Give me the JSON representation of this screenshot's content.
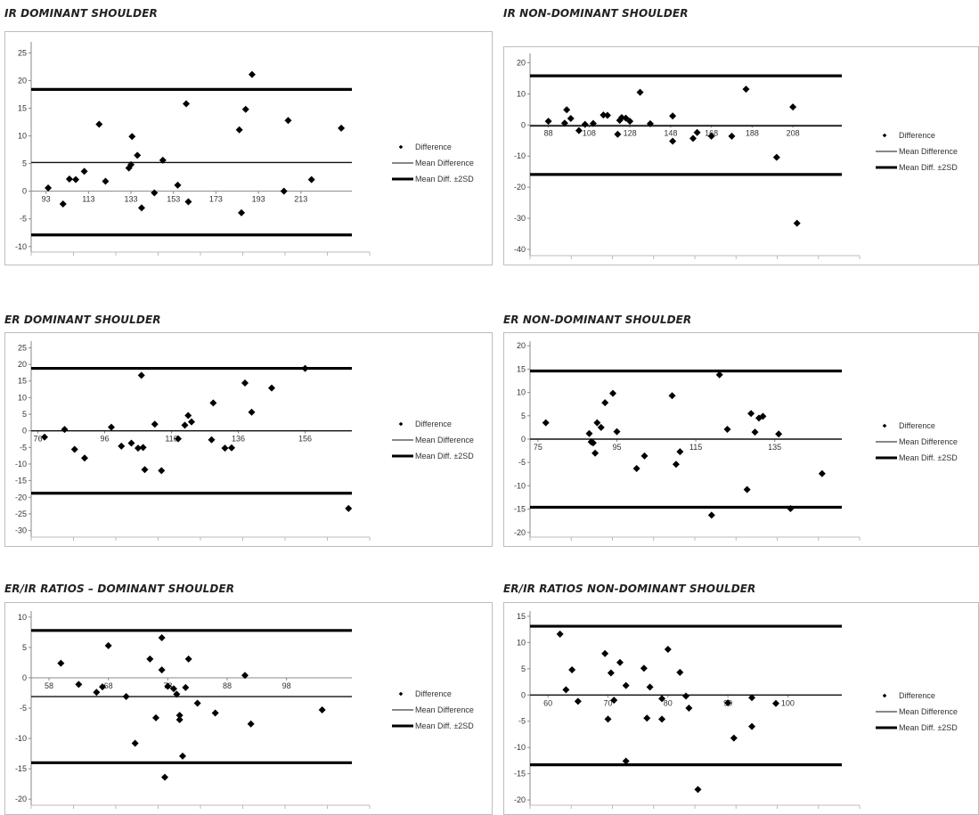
{
  "chart_data": [
    {
      "type": "scatter",
      "title": "IR  DOMINANT  SHOULDER",
      "xlabel": "",
      "ylabel": "",
      "x_ticks": [
        93,
        113,
        133,
        153,
        173,
        193,
        213
      ],
      "y_ticks": [
        -10,
        -5,
        0,
        5,
        10,
        15,
        20,
        25
      ],
      "xlim": [
        86,
        237
      ],
      "ylim": [
        -11,
        27
      ],
      "mean_difference": 5.2,
      "upper_limit": 18.4,
      "lower_limit": -7.9,
      "legend": [
        "Difference",
        "Mean Difference",
        "Mean Diff. ±2SD"
      ],
      "legend_position": "right",
      "points": [
        [
          94,
          0.6
        ],
        [
          101,
          -2.3
        ],
        [
          104,
          2.2
        ],
        [
          107,
          2.1
        ],
        [
          111,
          3.6
        ],
        [
          118,
          12.1
        ],
        [
          121,
          1.8
        ],
        [
          132,
          4.2
        ],
        [
          133,
          4.8
        ],
        [
          133.5,
          9.9
        ],
        [
          136,
          6.5
        ],
        [
          138,
          -3
        ],
        [
          144,
          -0.3
        ],
        [
          148,
          5.6
        ],
        [
          155,
          1.1
        ],
        [
          159,
          15.8
        ],
        [
          160,
          -1.9
        ],
        [
          184,
          11.1
        ],
        [
          185,
          -3.9
        ],
        [
          187,
          14.8
        ],
        [
          190,
          21.1
        ],
        [
          205,
          0
        ],
        [
          207,
          12.8
        ],
        [
          218,
          2.1
        ],
        [
          232,
          11.4
        ]
      ]
    },
    {
      "type": "scatter",
      "title": "IR NON-DOMINANT  SHOULDER",
      "xlabel": "",
      "ylabel": "",
      "x_ticks": [
        88,
        108,
        128,
        148,
        168,
        188,
        208
      ],
      "y_ticks": [
        -40,
        -30,
        -20,
        -10,
        0,
        10,
        20
      ],
      "xlim": [
        79,
        232
      ],
      "ylim": [
        -42,
        23
      ],
      "mean_difference": -0.3,
      "upper_limit": 15.8,
      "lower_limit": -15.9,
      "legend": [
        "Difference",
        "Mean Difference",
        "Mean Diff. ±2SD"
      ],
      "legend_position": "right",
      "points": [
        [
          88,
          1.2
        ],
        [
          96,
          0.6
        ],
        [
          97,
          4.9
        ],
        [
          99,
          2.1
        ],
        [
          103,
          -1.8
        ],
        [
          106,
          0.2
        ],
        [
          110,
          0.5
        ],
        [
          115,
          3.2
        ],
        [
          117,
          3.1
        ],
        [
          122,
          -3
        ],
        [
          123,
          1.5
        ],
        [
          124,
          2.4
        ],
        [
          126,
          2.2
        ],
        [
          128,
          1.2
        ],
        [
          133,
          10.5
        ],
        [
          138,
          0.4
        ],
        [
          149,
          -5.2
        ],
        [
          149,
          2.9
        ],
        [
          159,
          -4.3
        ],
        [
          161,
          -2.4
        ],
        [
          168,
          -3.6
        ],
        [
          178,
          -3.6
        ],
        [
          185,
          11.5
        ],
        [
          200,
          -10.4
        ],
        [
          208,
          5.8
        ],
        [
          210,
          -31.6
        ]
      ]
    },
    {
      "type": "scatter",
      "title": "ER  DOMINANT  SHOULDER",
      "xlabel": "",
      "ylabel": "",
      "x_ticks": [
        76,
        96,
        116,
        136,
        156
      ],
      "y_ticks": [
        -30,
        -25,
        -20,
        -15,
        -10,
        -5,
        0,
        5,
        10,
        15,
        20,
        25
      ],
      "xlim": [
        74,
        170
      ],
      "ylim": [
        -32,
        27
      ],
      "mean_difference": 0,
      "upper_limit": 18.8,
      "lower_limit": -18.8,
      "legend": [
        "Difference",
        "Mean Difference",
        "Mean Diff. ±2SD"
      ],
      "legend_position": "right",
      "points": [
        [
          78,
          -1.9
        ],
        [
          84,
          0.4
        ],
        [
          87,
          -5.6
        ],
        [
          90,
          -8.2
        ],
        [
          98,
          1.1
        ],
        [
          101,
          -4.6
        ],
        [
          104,
          -3.7
        ],
        [
          106,
          -5.2
        ],
        [
          107,
          16.7
        ],
        [
          107.5,
          -5
        ],
        [
          108,
          -11.7
        ],
        [
          111,
          2
        ],
        [
          113,
          -12
        ],
        [
          118,
          -2.4
        ],
        [
          120,
          1.7
        ],
        [
          121,
          4.6
        ],
        [
          122,
          2.7
        ],
        [
          128,
          -2.7
        ],
        [
          128.5,
          8.4
        ],
        [
          132,
          -5.2
        ],
        [
          134,
          -5.1
        ],
        [
          138,
          14.4
        ],
        [
          140,
          5.6
        ],
        [
          146,
          12.9
        ],
        [
          156,
          18.8
        ],
        [
          169,
          -23.4
        ]
      ]
    },
    {
      "type": "scatter",
      "title": "ER NON-DOMINANT  SHOULDER",
      "xlabel": "",
      "ylabel": "",
      "x_ticks": [
        75,
        95,
        115,
        135
      ],
      "y_ticks": [
        -20,
        -15,
        -10,
        -5,
        0,
        5,
        10,
        15,
        20
      ],
      "xlim": [
        73,
        152
      ],
      "ylim": [
        -21,
        21
      ],
      "mean_difference": 0,
      "upper_limit": 14.6,
      "lower_limit": -14.6,
      "legend": [
        "Difference",
        "Mean Difference",
        "Mean Diff. ±2SD"
      ],
      "legend_position": "right",
      "points": [
        [
          77,
          3.5
        ],
        [
          88,
          1.2
        ],
        [
          88.5,
          -0.6
        ],
        [
          89,
          -0.8
        ],
        [
          89.5,
          -3
        ],
        [
          90,
          3.5
        ],
        [
          91,
          2.5
        ],
        [
          92,
          7.8
        ],
        [
          94,
          9.8
        ],
        [
          95,
          1.6
        ],
        [
          100,
          -6.3
        ],
        [
          102,
          -3.6
        ],
        [
          109,
          9.3
        ],
        [
          110,
          -5.4
        ],
        [
          111,
          -2.7
        ],
        [
          119,
          -16.3
        ],
        [
          121,
          13.8
        ],
        [
          123,
          2.1
        ],
        [
          128,
          -10.8
        ],
        [
          129,
          5.5
        ],
        [
          130,
          1.5
        ],
        [
          131,
          4.5
        ],
        [
          132,
          4.9
        ],
        [
          136,
          1.1
        ],
        [
          139,
          -14.9
        ],
        [
          147,
          -7.4
        ]
      ]
    },
    {
      "type": "scatter",
      "title": "ER/IR RATIOS – DOMINANT  SHOULDER",
      "xlabel": "",
      "ylabel": "",
      "x_ticks": [
        58,
        68,
        78,
        88,
        98
      ],
      "y_ticks": [
        -20,
        -15,
        -10,
        -5,
        0,
        5,
        10
      ],
      "xlim": [
        55,
        109
      ],
      "ylim": [
        -21,
        11
      ],
      "mean_difference": -3.1,
      "upper_limit": 7.8,
      "lower_limit": -14.0,
      "legend": [
        "Difference",
        "Mean Difference",
        "Mean Diff. ±2SD"
      ],
      "legend_position": "right",
      "points": [
        [
          60,
          2.4
        ],
        [
          63,
          -1.1
        ],
        [
          66,
          -2.4
        ],
        [
          67,
          -1.5
        ],
        [
          68,
          5.3
        ],
        [
          71,
          -3.1
        ],
        [
          72.5,
          -10.8
        ],
        [
          75,
          3.1
        ],
        [
          76,
          -6.6
        ],
        [
          77,
          1.3
        ],
        [
          77.5,
          -16.4
        ],
        [
          77,
          6.6
        ],
        [
          78,
          -1.4
        ],
        [
          79,
          -1.8
        ],
        [
          79.5,
          -2.7
        ],
        [
          80,
          -6.2
        ],
        [
          80,
          -6.9
        ],
        [
          80.5,
          -12.9
        ],
        [
          81,
          -1.6
        ],
        [
          81.5,
          3.1
        ],
        [
          83,
          -4.2
        ],
        [
          86,
          -5.8
        ],
        [
          91,
          0.4
        ],
        [
          92,
          -7.6
        ],
        [
          104,
          -5.3
        ]
      ]
    },
    {
      "type": "scatter",
      "title": "ER/IR RATIOS NON-DOMINANT  SHOULDER",
      "xlabel": "",
      "ylabel": "",
      "x_ticks": [
        60,
        70,
        80,
        90,
        100
      ],
      "y_ticks": [
        -20,
        -15,
        -10,
        -5,
        0,
        5,
        10,
        15
      ],
      "xlim": [
        57,
        109
      ],
      "ylim": [
        -21,
        16
      ],
      "mean_difference": 0,
      "upper_limit": 13.1,
      "lower_limit": -13.3,
      "legend": [
        "Difference",
        "Mean Difference",
        "Mean Diff. ±2SD"
      ],
      "legend_position": "right",
      "points": [
        [
          62,
          11.6
        ],
        [
          63,
          1
        ],
        [
          64,
          4.8
        ],
        [
          65,
          -1.2
        ],
        [
          69.5,
          7.9
        ],
        [
          70,
          -4.6
        ],
        [
          70.5,
          4.2
        ],
        [
          71,
          -1
        ],
        [
          72,
          6.2
        ],
        [
          73,
          1.8
        ],
        [
          73,
          -12.6
        ],
        [
          76,
          5.1
        ],
        [
          76.5,
          -4.4
        ],
        [
          77,
          1.5
        ],
        [
          79,
          -4.6
        ],
        [
          79,
          -0.7
        ],
        [
          80,
          8.7
        ],
        [
          82,
          4.3
        ],
        [
          83,
          -0.2
        ],
        [
          83.5,
          -2.5
        ],
        [
          85,
          -18
        ],
        [
          90,
          -1.5
        ],
        [
          91,
          -8.2
        ],
        [
          94,
          -0.5
        ],
        [
          94,
          -6
        ],
        [
          98,
          -1.6
        ]
      ]
    }
  ]
}
